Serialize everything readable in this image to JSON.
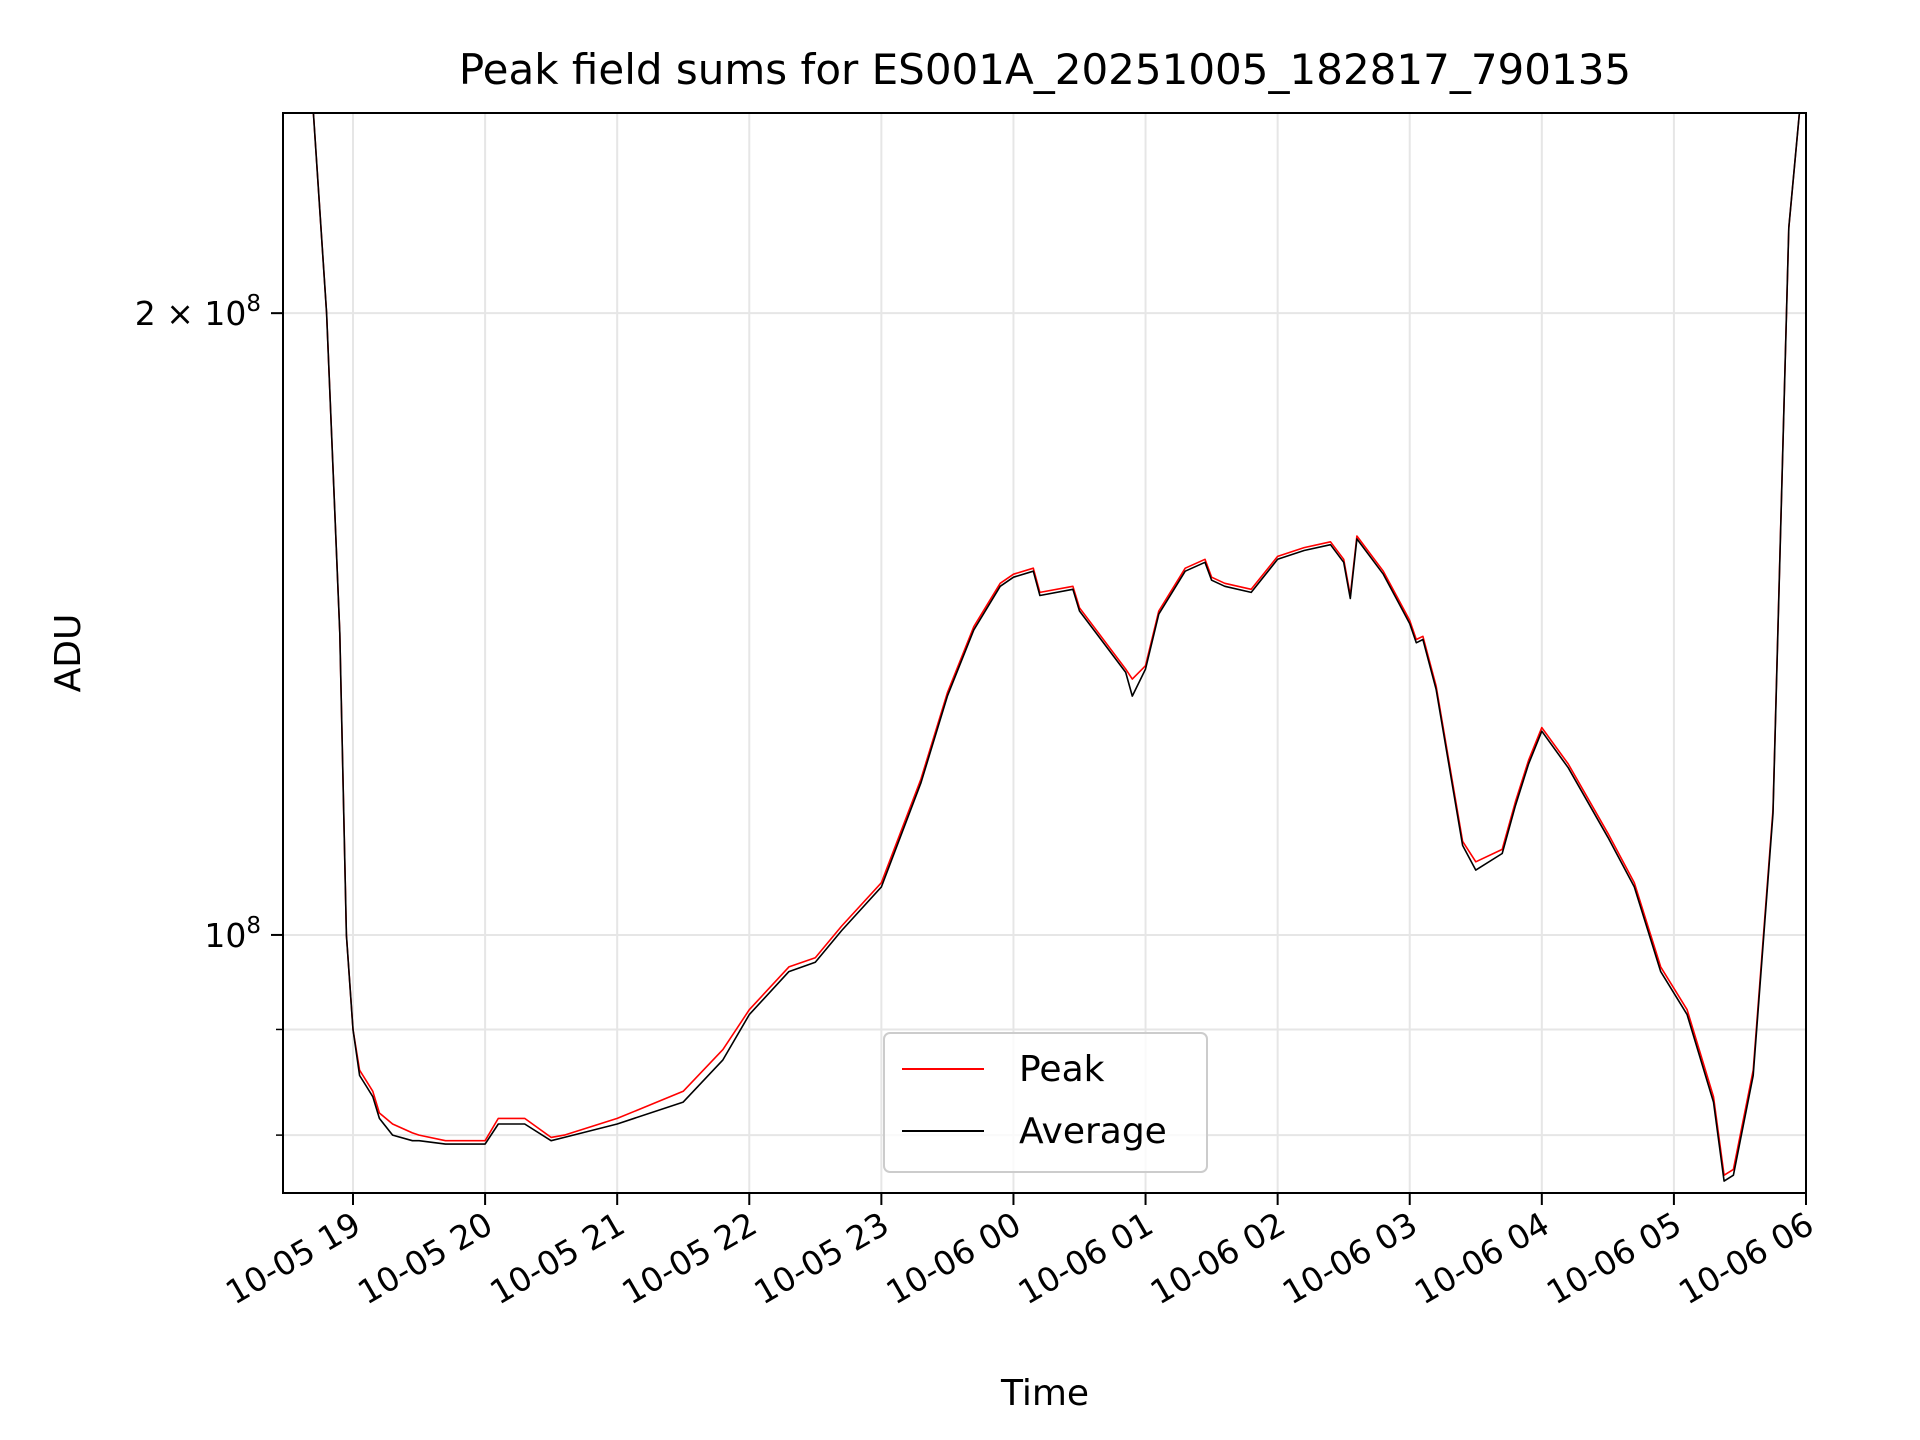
{
  "chart_data": {
    "type": "line",
    "title": "Peak field sums for ES001A_20251005_182817_790135",
    "xlabel": "Time",
    "ylabel": "ADU",
    "yscale": "log",
    "ylim": [
      75000000,
      250000000
    ],
    "xlim_hours": [
      -0.53,
      11.0
    ],
    "grid": true,
    "legend_location": "lower center",
    "x_ticks": [
      {
        "hour": 0,
        "label": "10-05 19"
      },
      {
        "hour": 1,
        "label": "10-05 20"
      },
      {
        "hour": 2,
        "label": "10-05 21"
      },
      {
        "hour": 3,
        "label": "10-05 22"
      },
      {
        "hour": 4,
        "label": "10-05 23"
      },
      {
        "hour": 5,
        "label": "10-06 00"
      },
      {
        "hour": 6,
        "label": "10-06 01"
      },
      {
        "hour": 7,
        "label": "10-06 02"
      },
      {
        "hour": 8,
        "label": "10-06 03"
      },
      {
        "hour": 9,
        "label": "10-06 04"
      },
      {
        "hour": 10,
        "label": "10-06 05"
      },
      {
        "hour": 11,
        "label": "10-06 06"
      }
    ],
    "y_ticks_major": [
      {
        "value": 100000000,
        "base": "10",
        "exp": "8",
        "mantissa": ""
      },
      {
        "value": 200000000,
        "base": "10",
        "exp": "8",
        "mantissa": "2 × "
      }
    ],
    "y_ticks_minor": [
      80000000,
      90000000
    ],
    "x_hours": [
      -0.3,
      -0.2,
      -0.1,
      -0.05,
      0.0,
      0.05,
      0.1,
      0.15,
      0.2,
      0.3,
      0.45,
      0.5,
      0.7,
      0.9,
      1.0,
      1.1,
      1.3,
      1.5,
      1.6,
      2.0,
      2.5,
      2.8,
      3.0,
      3.3,
      3.5,
      3.7,
      4.0,
      4.3,
      4.5,
      4.7,
      4.9,
      5.0,
      5.15,
      5.2,
      5.45,
      5.5,
      5.7,
      5.85,
      5.9,
      6.0,
      6.1,
      6.3,
      6.45,
      6.5,
      6.6,
      6.8,
      7.0,
      7.2,
      7.4,
      7.5,
      7.55,
      7.6,
      7.8,
      8.0,
      8.05,
      8.1,
      8.2,
      8.4,
      8.5,
      8.7,
      8.8,
      8.9,
      9.0,
      9.2,
      9.5,
      9.7,
      9.9,
      10.1,
      10.3,
      10.38,
      10.45,
      10.6,
      10.75,
      10.87,
      10.95
    ],
    "series": [
      {
        "name": "Peak",
        "color": "#ff0000",
        "values": [
          250000000,
          200000000,
          140000000,
          100000000,
          90000000,
          86000000,
          85000000,
          84000000,
          82000000,
          81000000,
          80200000,
          80000000,
          79500000,
          79500000,
          79500000,
          81500000,
          81500000,
          79800000,
          80000000,
          81500000,
          84000000,
          88000000,
          92000000,
          96500000,
          97500000,
          101000000,
          106000000,
          119000000,
          131000000,
          141000000,
          148000000,
          149500000,
          150500000,
          146500000,
          147500000,
          144000000,
          138500000,
          134500000,
          133000000,
          135000000,
          143500000,
          150500000,
          152000000,
          149000000,
          148000000,
          147000000,
          152500000,
          154000000,
          155000000,
          152000000,
          146000000,
          156000000,
          150000000,
          142000000,
          139000000,
          139500000,
          132000000,
          111000000,
          108500000,
          110000000,
          116000000,
          121500000,
          126000000,
          121000000,
          112000000,
          106000000,
          96500000,
          92000000,
          83500000,
          76500000,
          77000000,
          86000000,
          115000000,
          220000000,
          250000000
        ]
      },
      {
        "name": "Average",
        "color": "#000000",
        "values": [
          250000000,
          200000000,
          140000000,
          100000000,
          90000000,
          85500000,
          84500000,
          83500000,
          81500000,
          80000000,
          79500000,
          79500000,
          79200000,
          79200000,
          79200000,
          81000000,
          81000000,
          79500000,
          79800000,
          81000000,
          83000000,
          87000000,
          91500000,
          96000000,
          97000000,
          100500000,
          105500000,
          118500000,
          130500000,
          140500000,
          147500000,
          149000000,
          150000000,
          146000000,
          147000000,
          143500000,
          138000000,
          134000000,
          130500000,
          134500000,
          143000000,
          150000000,
          151500000,
          148500000,
          147500000,
          146500000,
          152000000,
          153500000,
          154500000,
          151500000,
          145500000,
          155500000,
          149500000,
          141500000,
          138500000,
          139000000,
          131500000,
          110500000,
          107500000,
          109500000,
          115500000,
          121000000,
          125500000,
          120500000,
          111500000,
          105500000,
          96000000,
          91500000,
          83000000,
          76000000,
          76500000,
          85500000,
          114500000,
          220000000,
          250000000
        ]
      }
    ]
  }
}
